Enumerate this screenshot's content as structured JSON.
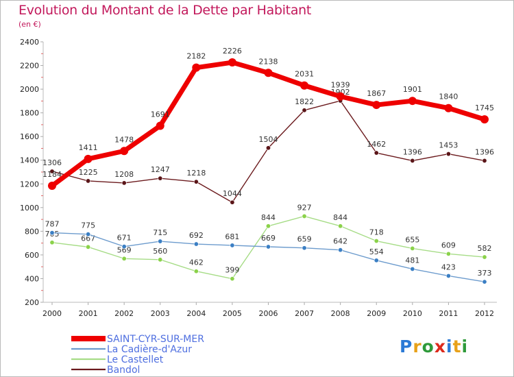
{
  "chart_data": {
    "type": "line",
    "title": "Evolution du Montant de la Dette par Habitant",
    "subtitle": "(en €)",
    "xlabel": "",
    "ylabel": "",
    "ylim": [
      200,
      2400
    ],
    "yticks": [
      200,
      400,
      600,
      800,
      1000,
      1200,
      1400,
      1600,
      1800,
      2000,
      2200,
      2400
    ],
    "x": [
      "2000",
      "2001",
      "2002",
      "2003",
      "2004",
      "2005",
      "2006",
      "2007",
      "2008",
      "2009",
      "2010",
      "2011",
      "2012"
    ],
    "grid": false,
    "legend_position": "bottom-left",
    "series": [
      {
        "name": "Bandol",
        "color": "#6b1a1d",
        "marker": "#5a1518",
        "values": [
          1306,
          1225,
          1208,
          1247,
          1218,
          1044,
          1504,
          1822,
          1902,
          1462,
          1396,
          1453,
          1396
        ]
      },
      {
        "name": "Le Castellet",
        "color": "#a6dc86",
        "marker": "#8bd24a",
        "values": [
          705,
          667,
          569,
          560,
          462,
          399,
          844,
          927,
          844,
          718,
          655,
          609,
          582
        ]
      },
      {
        "name": "La Cadière-d'Azur",
        "color": "#6c9bcd",
        "marker": "#3b7fc4",
        "values": [
          787,
          775,
          671,
          715,
          692,
          681,
          669,
          659,
          642,
          554,
          481,
          423,
          373
        ]
      },
      {
        "name": "SAINT-CYR-SUR-MER",
        "color": "#ee0000",
        "marker": "#ee0000",
        "values": [
          1184,
          1411,
          1478,
          1691,
          2182,
          2226,
          2138,
          2031,
          1939,
          1867,
          1901,
          1840,
          1745
        ]
      }
    ],
    "legend": [
      {
        "name": "SAINT-CYR-SUR-MER",
        "color": "#ee0000",
        "text_color": "#4f6fe0"
      },
      {
        "name": "La Cadière-d'Azur",
        "color": "#6c9bcd",
        "text_color": "#4f6fe0"
      },
      {
        "name": "Le Castellet",
        "color": "#a6dc86",
        "text_color": "#4f6fe0"
      },
      {
        "name": "Bandol",
        "color": "#6b1a1d",
        "text_color": "#4f6fe0"
      }
    ]
  },
  "logo": {
    "text": "Proxiti",
    "letters": [
      {
        "ch": "P",
        "color": "#2b7ad6"
      },
      {
        "ch": "r",
        "color": "#e8a119"
      },
      {
        "ch": "o",
        "color": "#2e9a3a"
      },
      {
        "ch": "x",
        "color": "#dc2a1c"
      },
      {
        "ch": "i",
        "color": "#2b7ad6"
      },
      {
        "ch": "t",
        "color": "#e8a119"
      },
      {
        "ch": "i",
        "color": "#2e9a3a"
      }
    ]
  }
}
